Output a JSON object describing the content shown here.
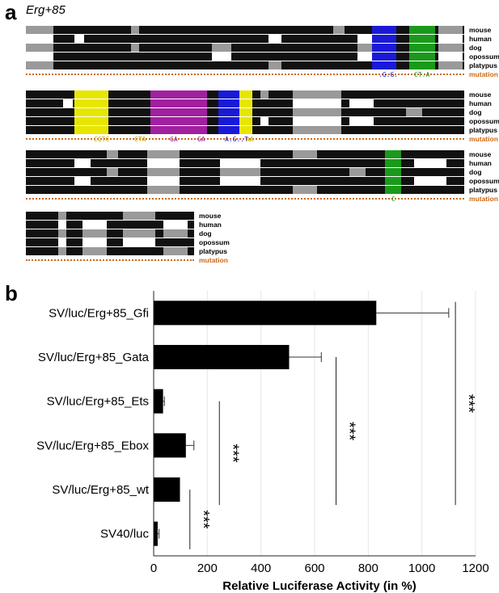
{
  "panel_a": {
    "letter": "a",
    "title": "Erg+85",
    "species": [
      "mouse",
      "human",
      "dog",
      "opossum",
      "platypus"
    ],
    "mutation_label": "mutation",
    "colors": {
      "conserved": "#111111",
      "partial": "#9a9a9a",
      "unconserved": "#ffffff",
      "ets_motif": "#e6e600",
      "gfi_motif": "#a020a0",
      "ebox_motif": "#1a1ad6",
      "gata_motif": "#1a9a1a",
      "mutation_text": "#c96a1a"
    },
    "blocks": [
      {
        "mutation_marks": [
          {
            "text": ".G.G.",
            "color": "#1a1ad6"
          },
          {
            "text": "CT.A",
            "color": "#1a9a1a"
          }
        ]
      },
      {
        "mutation_marks": [
          {
            "text": "CGTC",
            "color": "#c9a400"
          },
          {
            "text": "CTA",
            "color": "#c9a400"
          },
          {
            "text": "GA",
            "color": "#a020a0"
          },
          {
            "text": "GA",
            "color": "#a020a0"
          },
          {
            "text": "A.G..T",
            "color": "#1a1ad6"
          },
          {
            "text": "AA",
            "color": "#c9a400"
          }
        ]
      },
      {
        "mutation_marks": [
          {
            "text": "C",
            "color": "#1a9a1a"
          }
        ]
      },
      {
        "mutation_marks": []
      }
    ]
  },
  "panel_b": {
    "letter": "b"
  },
  "chart_data": {
    "type": "bar",
    "orientation": "horizontal",
    "categories": [
      "SV/luc/Erg+85_Gfi",
      "SV/luc/Erg+85_Gata",
      "SV/luc/Erg+85_Ets",
      "SV/luc/Erg+85_Ebox",
      "SV/luc/Erg+85_wt",
      "SV40/luc"
    ],
    "values": [
      830,
      505,
      35,
      120,
      98,
      15
    ],
    "errors": [
      270,
      120,
      5,
      30,
      0,
      5
    ],
    "xlabel": "Relative Luciferase Activity (in %)",
    "xlim": [
      0,
      1200
    ],
    "xticks": [
      "0",
      "200",
      "400",
      "600",
      "800",
      "1000",
      "1200"
    ],
    "grid": "vertical",
    "bar_color": "#000000",
    "significance": [
      {
        "label": "***",
        "from": "SV/luc/Erg+85_wt",
        "to": "SV40/luc",
        "x": 135
      },
      {
        "label": "***",
        "from": "SV/luc/Erg+85_Ets",
        "to": "SV/luc/Erg+85_wt",
        "x": 245
      },
      {
        "label": "***",
        "from": "SV/luc/Erg+85_Gata",
        "to": "SV/luc/Erg+85_wt",
        "x": 680
      },
      {
        "label": "***",
        "from": "SV/luc/Erg+85_Gfi",
        "to": "SV/luc/Erg+85_wt",
        "x": 1125
      }
    ]
  }
}
